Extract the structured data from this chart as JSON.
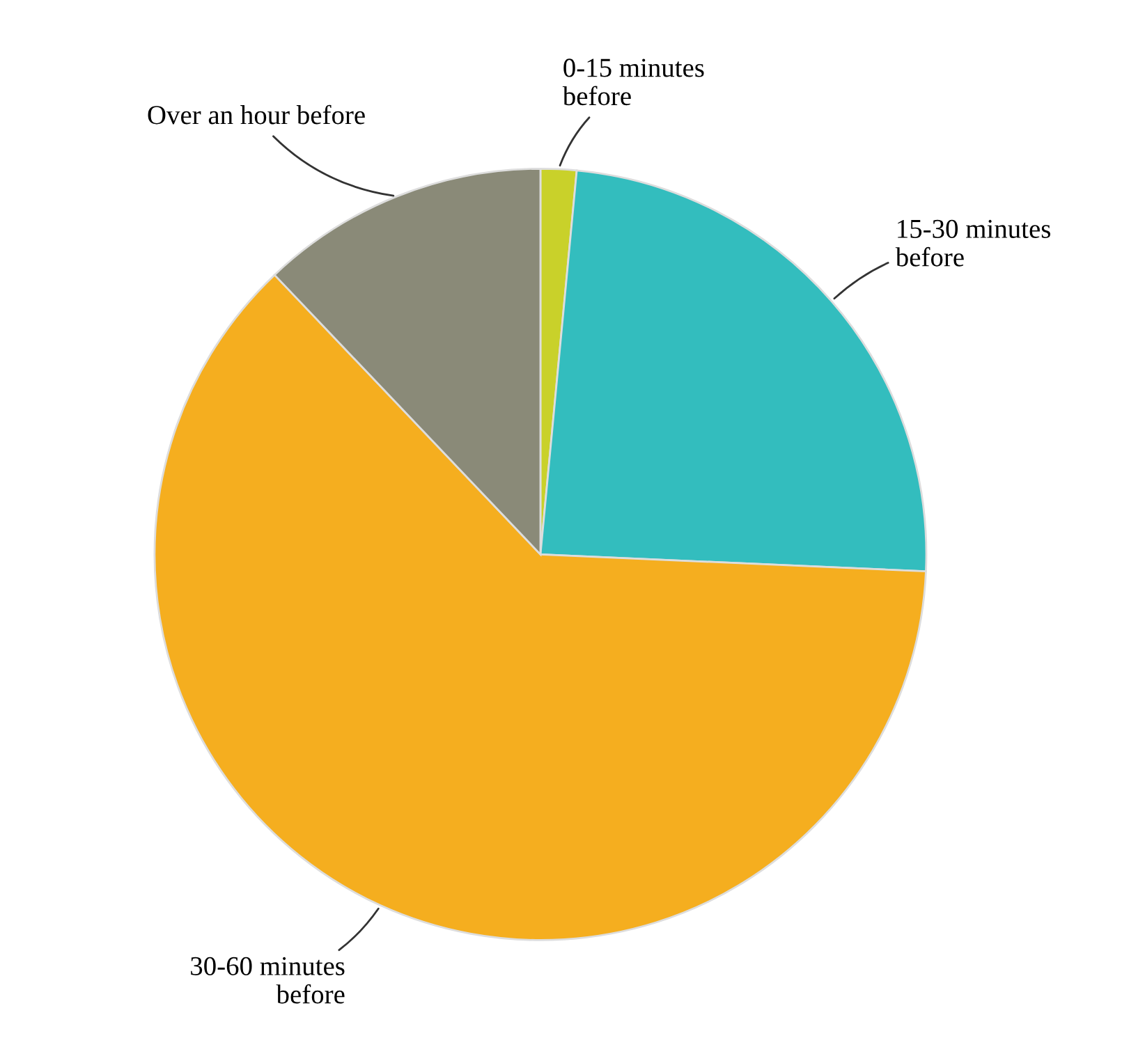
{
  "chart_data": {
    "type": "pie",
    "categories": [
      "0-15 minutes\nbefore",
      "15-30 minutes\nbefore",
      "30-60 minutes\nbefore",
      "Over an hour before"
    ],
    "values": [
      1.5,
      24.2,
      62.2,
      12.1
    ],
    "colors": [
      "#c9d12a",
      "#33bdbe",
      "#f5ae1f",
      "#8a8a78"
    ],
    "legend": false
  }
}
